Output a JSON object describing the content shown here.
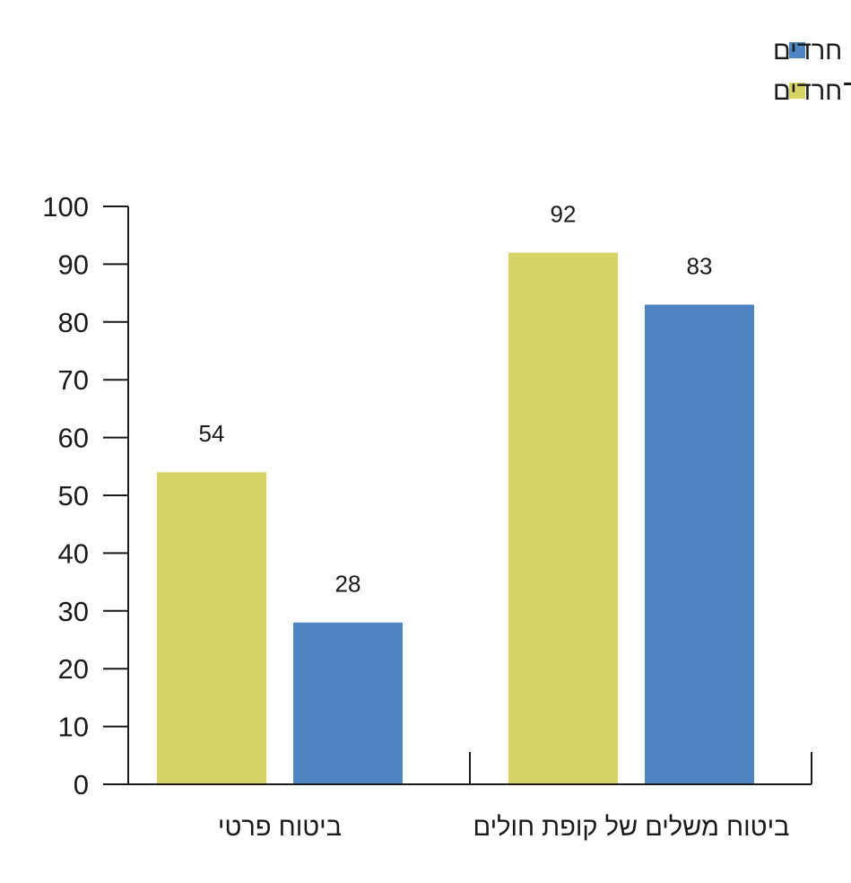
{
  "chart_data": {
    "type": "bar",
    "title": "",
    "xlabel": "",
    "ylabel": "",
    "ylim": [
      0,
      100
    ],
    "yticks": [
      0,
      10,
      20,
      30,
      40,
      50,
      60,
      70,
      80,
      90,
      100
    ],
    "categories": [
      "ביטוח משלים של קופת חולים",
      "ביטוח פרטי"
    ],
    "series": [
      {
        "name": "חרדים",
        "color": "#4e86c4",
        "values": [
          83,
          28
        ]
      },
      {
        "name": "יהודים לא־חרדים",
        "color": "#d6d466",
        "values": [
          92,
          54
        ]
      }
    ],
    "legend_position": "top-right",
    "grid": false
  }
}
